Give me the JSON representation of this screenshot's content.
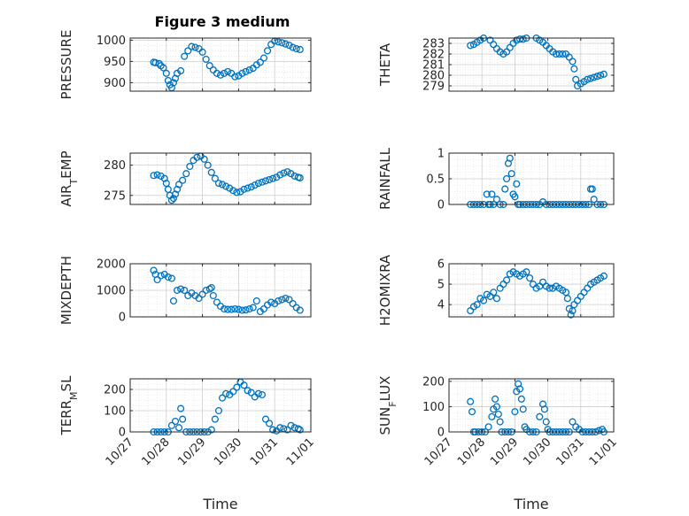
{
  "figure": {
    "title": "Figure 3 medium"
  },
  "colors": {
    "marker": "#0072BD",
    "axis": "#262626",
    "grid": "#dcdcdc"
  },
  "chart_data": [
    {
      "type": "scatter",
      "ylabel": "PRESSURE",
      "xlabel": "",
      "xlim": [
        0,
        5
      ],
      "xticks": [
        0,
        1,
        2,
        3,
        4,
        5
      ],
      "xticklabels": [
        "10/27",
        "10/28",
        "10/29",
        "10/30",
        "10/31",
        "11/01"
      ],
      "ylim": [
        880,
        1005
      ],
      "yticks": [
        900,
        950,
        1000
      ],
      "yticklabels": [
        "900",
        "950",
        "1000"
      ],
      "grid": true,
      "title": "Figure 3 medium",
      "x": [
        0.65,
        0.7,
        0.8,
        0.85,
        0.92,
        1.0,
        1.05,
        1.1,
        1.15,
        1.2,
        1.25,
        1.3,
        1.4,
        1.5,
        1.6,
        1.7,
        1.8,
        1.9,
        2.0,
        2.1,
        2.2,
        2.3,
        2.4,
        2.5,
        2.6,
        2.7,
        2.8,
        2.9,
        3.0,
        3.1,
        3.2,
        3.3,
        3.4,
        3.5,
        3.6,
        3.7,
        3.8,
        3.9,
        4.0,
        4.1,
        4.2,
        4.3,
        4.4,
        4.5,
        4.6,
        4.7
      ],
      "y": [
        948,
        947,
        945,
        940,
        935,
        922,
        905,
        895,
        888,
        900,
        910,
        922,
        928,
        962,
        975,
        985,
        983,
        980,
        972,
        955,
        940,
        930,
        922,
        918,
        922,
        926,
        922,
        914,
        916,
        922,
        926,
        930,
        934,
        942,
        948,
        958,
        975,
        990,
        998,
        996,
        994,
        991,
        988,
        983,
        980,
        978
      ]
    },
    {
      "type": "scatter",
      "ylabel": "THETA",
      "xlabel": "",
      "xlim": [
        0,
        5
      ],
      "xticks": [
        0,
        1,
        2,
        3,
        4,
        5
      ],
      "xticklabels": [
        "10/27",
        "10/28",
        "10/29",
        "10/30",
        "10/31",
        "11/01"
      ],
      "ylim": [
        278.5,
        283.5
      ],
      "yticks": [
        279,
        280,
        281,
        282,
        283
      ],
      "yticklabels": [
        "279",
        "280",
        "281",
        "282",
        "283"
      ],
      "grid": true,
      "x": [
        0.65,
        0.75,
        0.85,
        0.95,
        1.05,
        1.15,
        1.25,
        1.35,
        1.45,
        1.55,
        1.65,
        1.75,
        1.85,
        1.95,
        2.05,
        2.15,
        2.25,
        2.35,
        2.45,
        2.55,
        2.65,
        2.75,
        2.85,
        2.95,
        3.05,
        3.15,
        3.25,
        3.35,
        3.45,
        3.55,
        3.65,
        3.75,
        3.8,
        3.85,
        3.9,
        4.0,
        4.1,
        4.2,
        4.3,
        4.4,
        4.5,
        4.6,
        4.7
      ],
      "y": [
        282.8,
        282.9,
        283.1,
        283.3,
        283.5,
        283.6,
        283.3,
        282.9,
        282.5,
        282.2,
        282.0,
        282.2,
        282.6,
        283.0,
        283.3,
        283.4,
        283.4,
        283.5,
        283.6,
        283.7,
        283.5,
        283.3,
        283.1,
        282.8,
        282.5,
        282.2,
        282.0,
        282.0,
        282.0,
        282.0,
        281.7,
        281.3,
        280.6,
        279.6,
        279.0,
        279.2,
        279.4,
        279.6,
        279.7,
        279.8,
        279.9,
        280.0,
        280.1
      ]
    },
    {
      "type": "scatter",
      "ylabel": "AIR_T_EMP",
      "xlabel": "",
      "xlim": [
        0,
        5
      ],
      "xticks": [
        0,
        1,
        2,
        3,
        4,
        5
      ],
      "xticklabels": [
        "10/27",
        "10/28",
        "10/29",
        "10/30",
        "10/31",
        "11/01"
      ],
      "ylim": [
        273.5,
        282
      ],
      "yticks": [
        275,
        280
      ],
      "yticklabels": [
        "275",
        "280"
      ],
      "grid": true,
      "x": [
        0.65,
        0.75,
        0.85,
        0.95,
        1.0,
        1.05,
        1.1,
        1.15,
        1.2,
        1.25,
        1.3,
        1.35,
        1.45,
        1.55,
        1.65,
        1.75,
        1.85,
        1.95,
        2.05,
        2.15,
        2.25,
        2.35,
        2.45,
        2.55,
        2.65,
        2.75,
        2.85,
        2.95,
        3.05,
        3.15,
        3.25,
        3.35,
        3.45,
        3.55,
        3.65,
        3.75,
        3.85,
        3.95,
        4.05,
        4.15,
        4.25,
        4.35,
        4.45,
        4.55,
        4.65,
        4.7
      ],
      "y": [
        278.3,
        278.4,
        278.2,
        277.8,
        277.0,
        276.0,
        275.0,
        274.2,
        274.5,
        275.2,
        276.0,
        276.8,
        277.5,
        278.6,
        279.8,
        280.8,
        281.3,
        281.5,
        281.0,
        280.0,
        278.8,
        277.8,
        277.0,
        276.8,
        276.5,
        276.2,
        275.8,
        275.5,
        275.6,
        276.0,
        276.2,
        276.4,
        276.7,
        277.0,
        277.2,
        277.4,
        277.6,
        277.8,
        278.0,
        278.4,
        278.7,
        278.9,
        278.6,
        278.2,
        278.0,
        277.9
      ]
    },
    {
      "type": "scatter",
      "ylabel": "RAINFALL",
      "xlabel": "",
      "xlim": [
        0,
        5
      ],
      "xticks": [
        0,
        1,
        2,
        3,
        4,
        5
      ],
      "xticklabels": [
        "10/27",
        "10/28",
        "10/29",
        "10/30",
        "10/31",
        "11/01"
      ],
      "ylim": [
        0,
        1
      ],
      "yticks": [
        0,
        0.5,
        1
      ],
      "yticklabels": [
        "0",
        "0.5",
        "1"
      ],
      "grid": true,
      "x": [
        0.65,
        0.75,
        0.85,
        0.95,
        1.05,
        1.15,
        1.2,
        1.25,
        1.3,
        1.35,
        1.45,
        1.55,
        1.65,
        1.7,
        1.75,
        1.8,
        1.85,
        1.9,
        1.95,
        2.0,
        2.05,
        2.1,
        2.15,
        2.25,
        2.35,
        2.45,
        2.55,
        2.65,
        2.75,
        2.85,
        2.95,
        3.05,
        3.15,
        3.25,
        3.35,
        3.45,
        3.55,
        3.65,
        3.75,
        3.85,
        3.95,
        4.05,
        4.15,
        4.25,
        4.3,
        4.35,
        4.4,
        4.5,
        4.6,
        4.7
      ],
      "y": [
        0,
        0,
        0,
        0,
        0,
        0.2,
        0,
        0,
        0.2,
        0,
        0.1,
        0,
        0,
        0.3,
        0.5,
        0.8,
        0.9,
        0.6,
        0.2,
        0.15,
        0.4,
        0,
        0,
        0,
        0,
        0,
        0,
        0,
        0,
        0.05,
        0,
        0,
        0,
        0,
        0,
        0,
        0,
        0,
        0,
        0,
        0,
        0,
        0,
        0,
        0.3,
        0.3,
        0.1,
        0,
        0,
        0
      ]
    },
    {
      "type": "scatter",
      "ylabel": "MIXDEPTH",
      "xlabel": "",
      "xlim": [
        0,
        5
      ],
      "xticks": [
        0,
        1,
        2,
        3,
        4,
        5
      ],
      "xticklabels": [
        "10/27",
        "10/28",
        "10/29",
        "10/30",
        "10/31",
        "11/01"
      ],
      "ylim": [
        0,
        2000
      ],
      "yticks": [
        0,
        1000,
        2000
      ],
      "yticklabels": [
        "0",
        "1000",
        "2000"
      ],
      "grid": true,
      "x": [
        0.65,
        0.7,
        0.75,
        0.85,
        0.95,
        1.05,
        1.15,
        1.2,
        1.3,
        1.4,
        1.5,
        1.6,
        1.7,
        1.8,
        1.9,
        2.0,
        2.1,
        2.2,
        2.25,
        2.3,
        2.4,
        2.5,
        2.6,
        2.7,
        2.8,
        2.9,
        3.0,
        3.1,
        3.2,
        3.3,
        3.4,
        3.5,
        3.6,
        3.7,
        3.8,
        3.9,
        4.0,
        4.1,
        4.2,
        4.3,
        4.4,
        4.5,
        4.6,
        4.7
      ],
      "y": [
        1750,
        1600,
        1400,
        1550,
        1600,
        1500,
        1450,
        600,
        1000,
        1050,
        1000,
        800,
        900,
        800,
        700,
        850,
        1000,
        1050,
        1100,
        800,
        550,
        400,
        300,
        280,
        280,
        300,
        280,
        250,
        260,
        300,
        350,
        600,
        200,
        300,
        450,
        550,
        500,
        600,
        650,
        700,
        650,
        500,
        350,
        250
      ]
    },
    {
      "type": "scatter",
      "ylabel": "H2OMIXRA",
      "xlabel": "",
      "xlim": [
        0,
        5
      ],
      "xticks": [
        0,
        1,
        2,
        3,
        4,
        5
      ],
      "xticklabels": [
        "10/27",
        "10/28",
        "10/29",
        "10/30",
        "10/31",
        "11/01"
      ],
      "ylim": [
        3.4,
        6
      ],
      "yticks": [
        4,
        5,
        6
      ],
      "yticklabels": [
        "4",
        "5",
        "6"
      ],
      "grid": true,
      "x": [
        0.65,
        0.75,
        0.85,
        0.95,
        1.05,
        1.15,
        1.25,
        1.35,
        1.45,
        1.55,
        1.65,
        1.75,
        1.85,
        1.95,
        2.05,
        2.15,
        2.25,
        2.35,
        2.45,
        2.55,
        2.65,
        2.75,
        2.85,
        2.95,
        3.05,
        3.15,
        3.25,
        3.35,
        3.45,
        3.55,
        3.6,
        3.65,
        3.7,
        3.75,
        3.8,
        3.9,
        4.0,
        4.1,
        4.2,
        4.3,
        4.4,
        4.5,
        4.6,
        4.7
      ],
      "y": [
        3.7,
        3.9,
        4.0,
        4.3,
        4.2,
        4.5,
        4.4,
        4.6,
        4.3,
        4.8,
        5.0,
        5.2,
        5.5,
        5.6,
        5.5,
        5.4,
        5.5,
        5.6,
        5.3,
        5.0,
        4.8,
        4.9,
        5.1,
        4.9,
        4.8,
        4.8,
        4.9,
        4.8,
        4.7,
        4.6,
        4.3,
        3.8,
        3.5,
        3.7,
        4.0,
        4.2,
        4.4,
        4.6,
        4.8,
        5.0,
        5.1,
        5.2,
        5.3,
        5.4
      ]
    },
    {
      "type": "scatter",
      "ylabel": "TERR_M_SL",
      "xlabel": "Time",
      "xlim": [
        0,
        5
      ],
      "xticks": [
        0,
        1,
        2,
        3,
        4,
        5
      ],
      "xticklabels": [
        "10/27",
        "10/28",
        "10/29",
        "10/30",
        "10/31",
        "11/01"
      ],
      "ylim": [
        0,
        250
      ],
      "yticks": [
        0,
        100,
        200
      ],
      "yticklabels": [
        "0",
        "100",
        "200"
      ],
      "grid": true,
      "x": [
        0.65,
        0.75,
        0.85,
        0.95,
        1.05,
        1.15,
        1.25,
        1.35,
        1.4,
        1.45,
        1.55,
        1.65,
        1.75,
        1.85,
        1.95,
        2.05,
        2.15,
        2.25,
        2.35,
        2.45,
        2.55,
        2.65,
        2.75,
        2.85,
        2.95,
        3.05,
        3.15,
        3.25,
        3.35,
        3.45,
        3.55,
        3.65,
        3.75,
        3.85,
        3.95,
        4.05,
        4.15,
        4.25,
        4.35,
        4.45,
        4.55,
        4.65,
        4.7
      ],
      "y": [
        0,
        0,
        0,
        0,
        0,
        30,
        50,
        20,
        110,
        60,
        0,
        0,
        0,
        0,
        0,
        0,
        0,
        10,
        60,
        100,
        160,
        180,
        175,
        190,
        210,
        235,
        220,
        195,
        185,
        165,
        180,
        175,
        60,
        40,
        10,
        5,
        20,
        15,
        10,
        30,
        20,
        15,
        10
      ]
    },
    {
      "type": "scatter",
      "ylabel": "SUN_F_LUX",
      "xlabel": "Time",
      "xlim": [
        0,
        5
      ],
      "xticks": [
        0,
        1,
        2,
        3,
        4,
        5
      ],
      "xticklabels": [
        "10/27",
        "10/28",
        "10/29",
        "10/30",
        "10/31",
        "11/01"
      ],
      "ylim": [
        0,
        210
      ],
      "yticks": [
        0,
        100,
        200
      ],
      "yticklabels": [
        "0",
        "100",
        "200"
      ],
      "grid": true,
      "x": [
        0.65,
        0.7,
        0.75,
        0.8,
        0.9,
        1.0,
        1.1,
        1.2,
        1.3,
        1.35,
        1.4,
        1.45,
        1.5,
        1.55,
        1.6,
        1.7,
        1.8,
        1.9,
        2.0,
        2.05,
        2.1,
        2.15,
        2.2,
        2.25,
        2.3,
        2.35,
        2.45,
        2.55,
        2.65,
        2.75,
        2.85,
        2.9,
        2.95,
        3.0,
        3.05,
        3.15,
        3.25,
        3.35,
        3.45,
        3.55,
        3.65,
        3.75,
        3.85,
        3.95,
        4.05,
        4.15,
        4.25,
        4.35,
        4.45,
        4.55,
        4.65,
        4.7
      ],
      "y": [
        120,
        80,
        0,
        0,
        0,
        0,
        0,
        20,
        60,
        90,
        130,
        100,
        70,
        40,
        0,
        0,
        0,
        0,
        80,
        160,
        190,
        170,
        130,
        90,
        20,
        10,
        0,
        0,
        0,
        60,
        110,
        90,
        40,
        10,
        0,
        0,
        0,
        0,
        0,
        0,
        0,
        40,
        20,
        10,
        0,
        0,
        0,
        0,
        0,
        5,
        10,
        0
      ]
    }
  ]
}
